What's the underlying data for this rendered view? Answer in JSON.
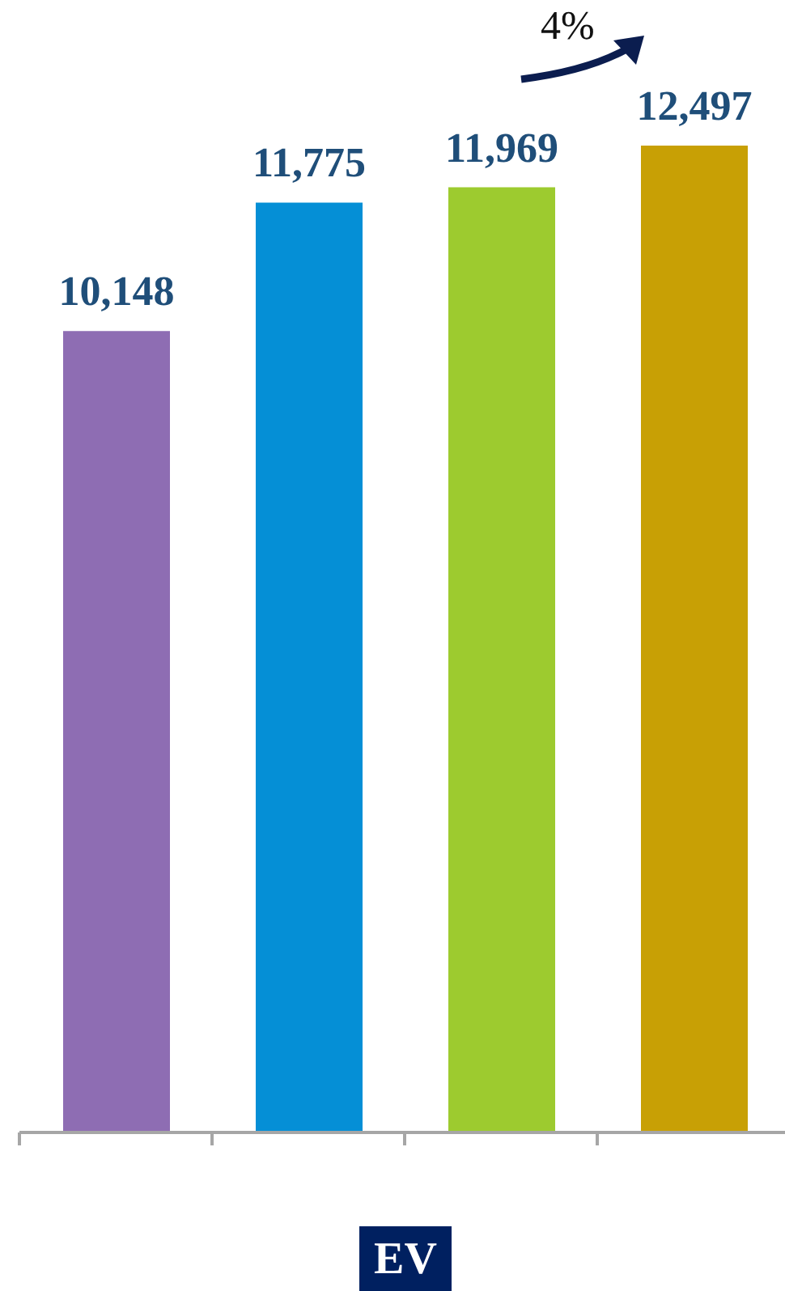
{
  "chart_data": {
    "type": "bar",
    "xlabel": "EV",
    "categories": [
      null,
      null,
      null,
      null
    ],
    "values": [
      10148,
      11775,
      11969,
      12497
    ],
    "value_labels": [
      "10,148",
      "11,775",
      "11,969",
      "12,497"
    ],
    "colors": [
      "#8e6db3",
      "#058fd6",
      "#9dcb2f",
      "#c8a005"
    ],
    "annotations": [
      "4%"
    ]
  }
}
